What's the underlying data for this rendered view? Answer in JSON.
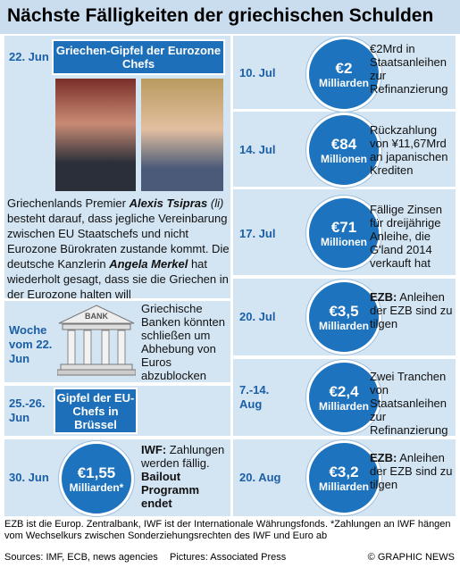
{
  "title": "Nächste Fälligkeiten der griechischen Schulden",
  "left": [
    {
      "date": "22. Jun",
      "box": "Griechen-Gipfel der Eurozone Chefs",
      "text": [
        "Griechenlands Premier ",
        "Alexis Tsipras",
        " (li)",
        " besteht darauf, dass jegliche Vereinbarung zwischen EU Staatschefs und nicht Eurozone Bürokraten zustande kommt. Die deutsche Kanzlerin ",
        "Angela Merkel",
        " hat wiederholt gesagt, dass sie die Griechen in der Eurozone halten will"
      ]
    },
    {
      "date": "Woche vom 22. Jun",
      "text": "Griechische Banken könnten schließen um Abhebung von Euros abzublocken"
    },
    {
      "date": "25.-26. Jun",
      "box": "Gipfel der EU-Chefs in Brüssel"
    },
    {
      "date": "30. Jun",
      "amount": "€1,55",
      "unit": "Milliarden*",
      "text": [
        "IWF:",
        " Zahlungen werden fällig. ",
        "Bailout Programm endet"
      ]
    }
  ],
  "right": [
    {
      "date": "10. Jul",
      "amount": "€2",
      "unit": "Milliarden",
      "text": [
        "€2Mrd in Staatsanleihen zur Refinanzierung"
      ]
    },
    {
      "date": "14. Jul",
      "amount": "€84",
      "unit": "Millionen",
      "text": [
        "Rückzahlung von ¥11,67Mrd an japanischen Krediten"
      ]
    },
    {
      "date": "17. Jul",
      "amount": "€71",
      "unit": "Millionen",
      "text": [
        "Fällige Zinsen für dreijährige Anleihe, die G'land 2014 verkauft hat"
      ]
    },
    {
      "date": "20. Jul",
      "amount": "€3,5",
      "unit": "Milliarden",
      "text": [
        "EZB:",
        " Anleihen der EZB sind zu tilgen"
      ]
    },
    {
      "date": "7.-14. Aug",
      "amount": "€2,4",
      "unit": "Milliarden",
      "text": [
        "Zwei Tranchen von Staatsanleihen zur Refinanzierung"
      ]
    },
    {
      "date": "20. Aug",
      "amount": "€3,2",
      "unit": "Milliarden",
      "text": [
        "EZB:",
        " Anleihen der EZB sind zu tilgen"
      ]
    }
  ],
  "footnote": "EZB ist die Europ. Zentralbank, IWF ist der Internationale Währungsfonds. *Zahlungen an IWF hängen vom Wechselkurs zwischen Sonderziehungsrechten des IWF und Euro ab",
  "sources": "Sources: IMF, ECB, news agencies",
  "pictures": "Pictures: Associated Press",
  "credit": "© GRAPHIC NEWS"
}
